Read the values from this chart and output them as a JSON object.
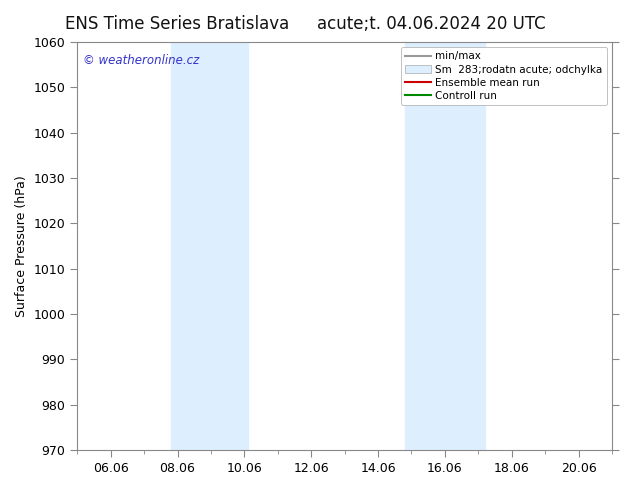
{
  "title_left": "ENS Time Series Bratislava",
  "title_right": "acute;t. 04.06.2024 20 UTC",
  "ylabel": "Surface Pressure (hPa)",
  "ylim": [
    970,
    1060
  ],
  "yticks": [
    970,
    980,
    990,
    1000,
    1010,
    1020,
    1030,
    1040,
    1050,
    1060
  ],
  "xlim": [
    5.0,
    21.0
  ],
  "xtick_labels": [
    "06.06",
    "08.06",
    "10.06",
    "12.06",
    "14.06",
    "16.06",
    "18.06",
    "20.06"
  ],
  "xtick_positions": [
    6,
    8,
    10,
    12,
    14,
    16,
    18,
    20
  ],
  "shaded_bands": [
    {
      "x_start": 7.8,
      "x_end": 10.1,
      "color": "#ddeeff"
    },
    {
      "x_start": 14.8,
      "x_end": 17.2,
      "color": "#ddeeff"
    }
  ],
  "legend_entries": [
    {
      "label": "min/max",
      "type": "line",
      "color": "#999999"
    },
    {
      "label": "Sm  283;rodatn acute; odchylka",
      "type": "fill",
      "color": "#ddeeff"
    },
    {
      "label": "Ensemble mean run",
      "type": "line",
      "color": "#cc0000"
    },
    {
      "label": "Controll run",
      "type": "line",
      "color": "#008800"
    }
  ],
  "watermark": "© weatheronline.cz",
  "watermark_color": "#3333cc",
  "background_color": "#ffffff",
  "plot_bg_color": "#ffffff",
  "title_fontsize": 12,
  "tick_fontsize": 9,
  "ylabel_fontsize": 9
}
